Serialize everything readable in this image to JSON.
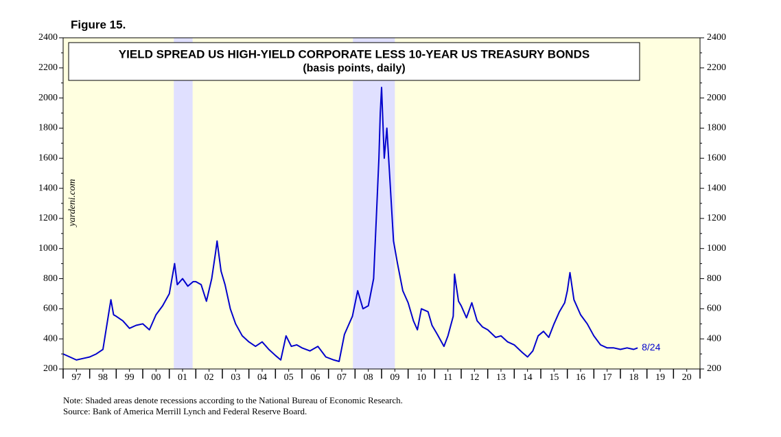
{
  "chart_data": {
    "type": "line",
    "figure": "Figure 15.",
    "title": "YIELD SPREAD US HIGH-YIELD CORPORATE LESS 10-YEAR US TREASURY BONDS",
    "subtitle": "(basis points, daily)",
    "watermark": "yardeni.com",
    "annotation": "8/24",
    "notes": [
      "Note: Shaded areas denote recessions according to the National Bureau of Economic Research.",
      "Source: Bank of America Merrill Lynch and Federal Reserve Board."
    ],
    "x": [
      1997.0,
      1997.25,
      1997.5,
      1997.75,
      1998.0,
      1998.25,
      1998.5,
      1998.7,
      1998.8,
      1998.9,
      1999.0,
      1999.25,
      1999.5,
      1999.75,
      2000.0,
      2000.25,
      2000.5,
      2000.75,
      2001.0,
      2001.2,
      2001.3,
      2001.5,
      2001.7,
      2001.9,
      2002.0,
      2002.2,
      2002.4,
      2002.6,
      2002.75,
      2002.8,
      2002.95,
      2003.1,
      2003.3,
      2003.5,
      2003.75,
      2004.0,
      2004.25,
      2004.5,
      2004.75,
      2005.0,
      2005.2,
      2005.4,
      2005.6,
      2005.8,
      2006.0,
      2006.3,
      2006.6,
      2006.9,
      2007.2,
      2007.4,
      2007.6,
      2007.9,
      2008.1,
      2008.3,
      2008.5,
      2008.7,
      2008.8,
      2008.9,
      2008.95,
      2009.0,
      2009.1,
      2009.2,
      2009.3,
      2009.45,
      2009.6,
      2009.8,
      2010.0,
      2010.2,
      2010.35,
      2010.5,
      2010.75,
      2010.9,
      2011.1,
      2011.35,
      2011.5,
      2011.7,
      2011.75,
      2011.9,
      2012.0,
      2012.2,
      2012.4,
      2012.6,
      2012.8,
      2013.0,
      2013.3,
      2013.5,
      2013.75,
      2014.0,
      2014.3,
      2014.5,
      2014.7,
      2014.9,
      2015.1,
      2015.3,
      2015.5,
      2015.7,
      2015.9,
      2016.0,
      2016.1,
      2016.25,
      2016.5,
      2016.75,
      2017.0,
      2017.25,
      2017.5,
      2017.75,
      2018.0,
      2018.25,
      2018.5,
      2018.65
    ],
    "series": [
      {
        "name": "Yield spread",
        "color": "#0000cc",
        "values": [
          300,
          280,
          260,
          270,
          280,
          300,
          330,
          550,
          660,
          560,
          550,
          520,
          470,
          490,
          500,
          460,
          560,
          620,
          700,
          900,
          760,
          800,
          750,
          780,
          780,
          760,
          650,
          800,
          980,
          1050,
          850,
          760,
          600,
          500,
          420,
          380,
          350,
          380,
          330,
          290,
          260,
          420,
          350,
          360,
          340,
          320,
          350,
          280,
          260,
          250,
          430,
          550,
          720,
          600,
          620,
          800,
          1200,
          1600,
          1900,
          2070,
          1600,
          1800,
          1500,
          1050,
          900,
          720,
          640,
          520,
          460,
          600,
          580,
          490,
          430,
          350,
          420,
          550,
          830,
          650,
          620,
          540,
          640,
          520,
          480,
          460,
          410,
          420,
          380,
          360,
          310,
          280,
          320,
          420,
          450,
          410,
          500,
          580,
          640,
          720,
          840,
          660,
          560,
          500,
          420,
          360,
          340,
          340,
          330,
          340,
          330,
          340
        ]
      }
    ],
    "recessions": [
      [
        2001.17,
        2001.88
      ],
      [
        2007.92,
        2009.5
      ]
    ],
    "xlim": [
      1997,
      2021
    ],
    "ylim": [
      200,
      2400
    ],
    "yticks": [
      200,
      400,
      600,
      800,
      1000,
      1200,
      1400,
      1600,
      1800,
      2000,
      2200,
      2400
    ],
    "xticks": [
      {
        "value": 1997.5,
        "label": "97"
      },
      {
        "value": 1998.5,
        "label": "98"
      },
      {
        "value": 1999.5,
        "label": "99"
      },
      {
        "value": 2000.5,
        "label": "00"
      },
      {
        "value": 2001.5,
        "label": "01"
      },
      {
        "value": 2002.5,
        "label": "02"
      },
      {
        "value": 2003.5,
        "label": "03"
      },
      {
        "value": 2004.5,
        "label": "04"
      },
      {
        "value": 2005.5,
        "label": "05"
      },
      {
        "value": 2006.5,
        "label": "06"
      },
      {
        "value": 2007.5,
        "label": "07"
      },
      {
        "value": 2008.5,
        "label": "08"
      },
      {
        "value": 2009.5,
        "label": "09"
      },
      {
        "value": 2010.5,
        "label": "10"
      },
      {
        "value": 2011.5,
        "label": "11"
      },
      {
        "value": 2012.5,
        "label": "12"
      },
      {
        "value": 2013.5,
        "label": "13"
      },
      {
        "value": 2014.5,
        "label": "14"
      },
      {
        "value": 2015.5,
        "label": "15"
      },
      {
        "value": 2016.5,
        "label": "16"
      },
      {
        "value": 2017.5,
        "label": "17"
      },
      {
        "value": 2018.5,
        "label": "18"
      },
      {
        "value": 2019.5,
        "label": "19"
      },
      {
        "value": 2020.5,
        "label": "20"
      }
    ]
  }
}
